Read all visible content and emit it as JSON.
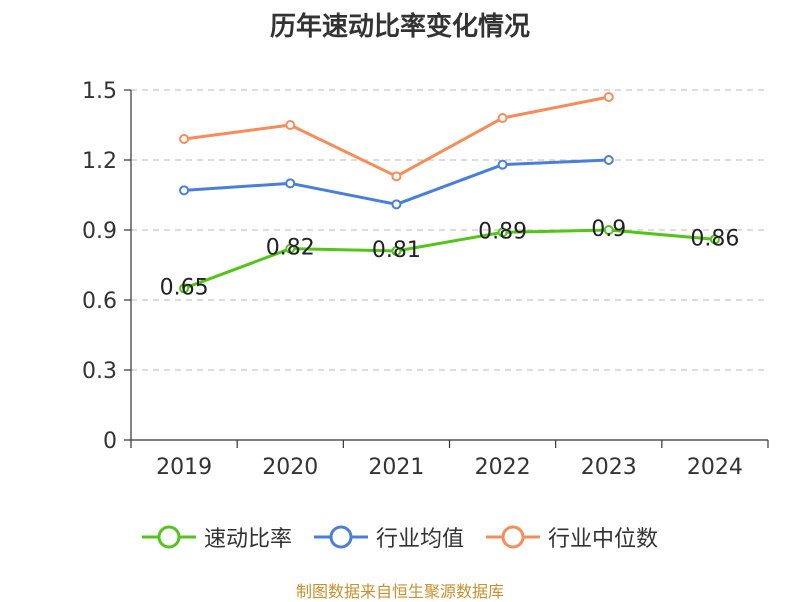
{
  "chart_data": {
    "type": "line",
    "title": "历年速动比率变化情况",
    "source": "制图数据来自恒生聚源数据库",
    "x": [
      "2019",
      "2020",
      "2021",
      "2022",
      "2023",
      "2024"
    ],
    "y_ticks": [
      "0",
      "0.3",
      "0.6",
      "0.9",
      "1.2",
      "1.5"
    ],
    "ylim": [
      0,
      1.5
    ],
    "grid": true,
    "legend_position": "bottom",
    "series": [
      {
        "name": "速动比率",
        "color": "#52c41a",
        "values": [
          0.65,
          0.82,
          0.81,
          0.89,
          0.9,
          0.86
        ],
        "labels": [
          "0.65",
          "0.82",
          "0.81",
          "0.89",
          "0.9",
          "0.86"
        ]
      },
      {
        "name": "行业均值",
        "color": "#4a7fd9",
        "values": [
          1.07,
          1.1,
          1.01,
          1.18,
          1.2,
          null
        ]
      },
      {
        "name": "行业中位数",
        "color": "#f58c5a",
        "values": [
          1.29,
          1.35,
          1.13,
          1.38,
          1.47,
          null
        ]
      }
    ]
  }
}
